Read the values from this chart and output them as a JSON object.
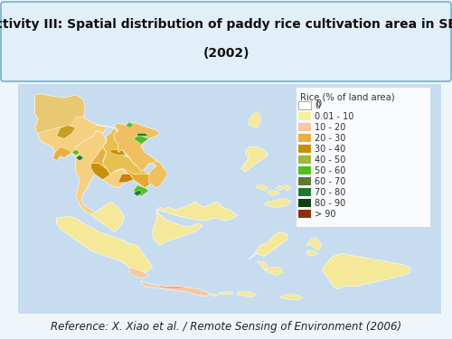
{
  "title_line1": "Activity III: Spatial distribution of paddy rice cultivation area in SEA",
  "title_line2": "(2002)",
  "reference": "Reference: X. Xiao et al. / Remote Sensing of Environment (2006)",
  "legend_title": "Rice (% of land area)",
  "legend_labels": [
    "0",
    "0.01 - 10",
    "10 - 20",
    "20 - 30",
    "30 - 40",
    "40 - 50",
    "50 - 60",
    "60 - 70",
    "70 - 80",
    "80 - 90",
    "> 90"
  ],
  "legend_colors": [
    "#FFFFFF",
    "#F5F0A0",
    "#F5C8A0",
    "#E8B040",
    "#C8900A",
    "#A0B840",
    "#50C020",
    "#607830",
    "#207830",
    "#104010",
    "#8B3010"
  ],
  "fig_bg": "#EEF6FC",
  "title_bg": "#E0EFF8",
  "map_bg": "#FFFFFF",
  "ocean_color": "#C8DCF0",
  "land_base": "#F5EFCA",
  "border_color": "#70B0D0",
  "title_fontsize": 10.0,
  "ref_fontsize": 8.5,
  "legend_fontsize": 7.0,
  "legend_title_fontsize": 7.2
}
